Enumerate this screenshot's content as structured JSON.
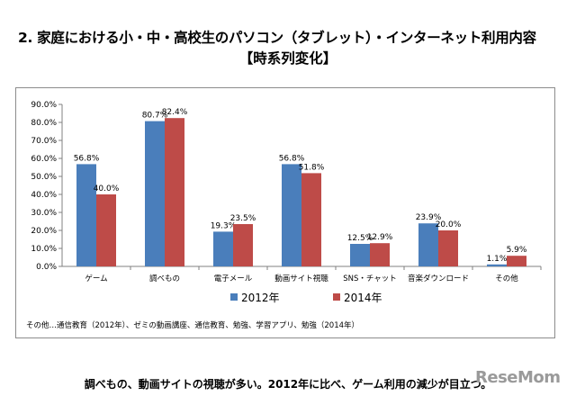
{
  "header": {
    "title": "2. 家庭における小・中・高校生のパソコン（タブレット）・インターネット利用内容",
    "subtitle": "【時系列変化】"
  },
  "chart_data": {
    "type": "bar",
    "categories": [
      "ゲーム",
      "調べもの",
      "電子メール",
      "動画サイト視聴",
      "SNS・チャット",
      "音楽ダウンロード",
      "その他"
    ],
    "series": [
      {
        "name": "2012年",
        "color": "#4a7ebb",
        "values": [
          56.8,
          80.7,
          19.3,
          56.8,
          12.5,
          23.9,
          1.1
        ],
        "labels": [
          "56.8%",
          "80.7%",
          "19.3%",
          "56.8%",
          "12.5%",
          "23.9%",
          "1.1%"
        ]
      },
      {
        "name": "2014年",
        "color": "#be4b48",
        "values": [
          40.0,
          82.4,
          23.5,
          51.8,
          12.9,
          20.0,
          5.9
        ],
        "labels": [
          "40.0%",
          "82.4%",
          "23.5%",
          "51.8%",
          "12.9%",
          "20.0%",
          "5.9%"
        ]
      }
    ],
    "ylim": [
      0,
      90
    ],
    "yticks": [
      "0.0%",
      "10.0%",
      "20.0%",
      "30.0%",
      "40.0%",
      "50.0%",
      "60.0%",
      "70.0%",
      "80.0%",
      "90.0%"
    ],
    "grid": false,
    "legend": "bottom-center"
  },
  "footnote": "その他…通信教育（2012年）、ゼミの動画講座、通信教育、勉強、学習アプリ、勉強（2014年）",
  "caption": "調べもの、動画サイトの視聴が多い。2012年に比べ、ゲーム利用の減少が目立つ。",
  "watermark": "ReseMom"
}
